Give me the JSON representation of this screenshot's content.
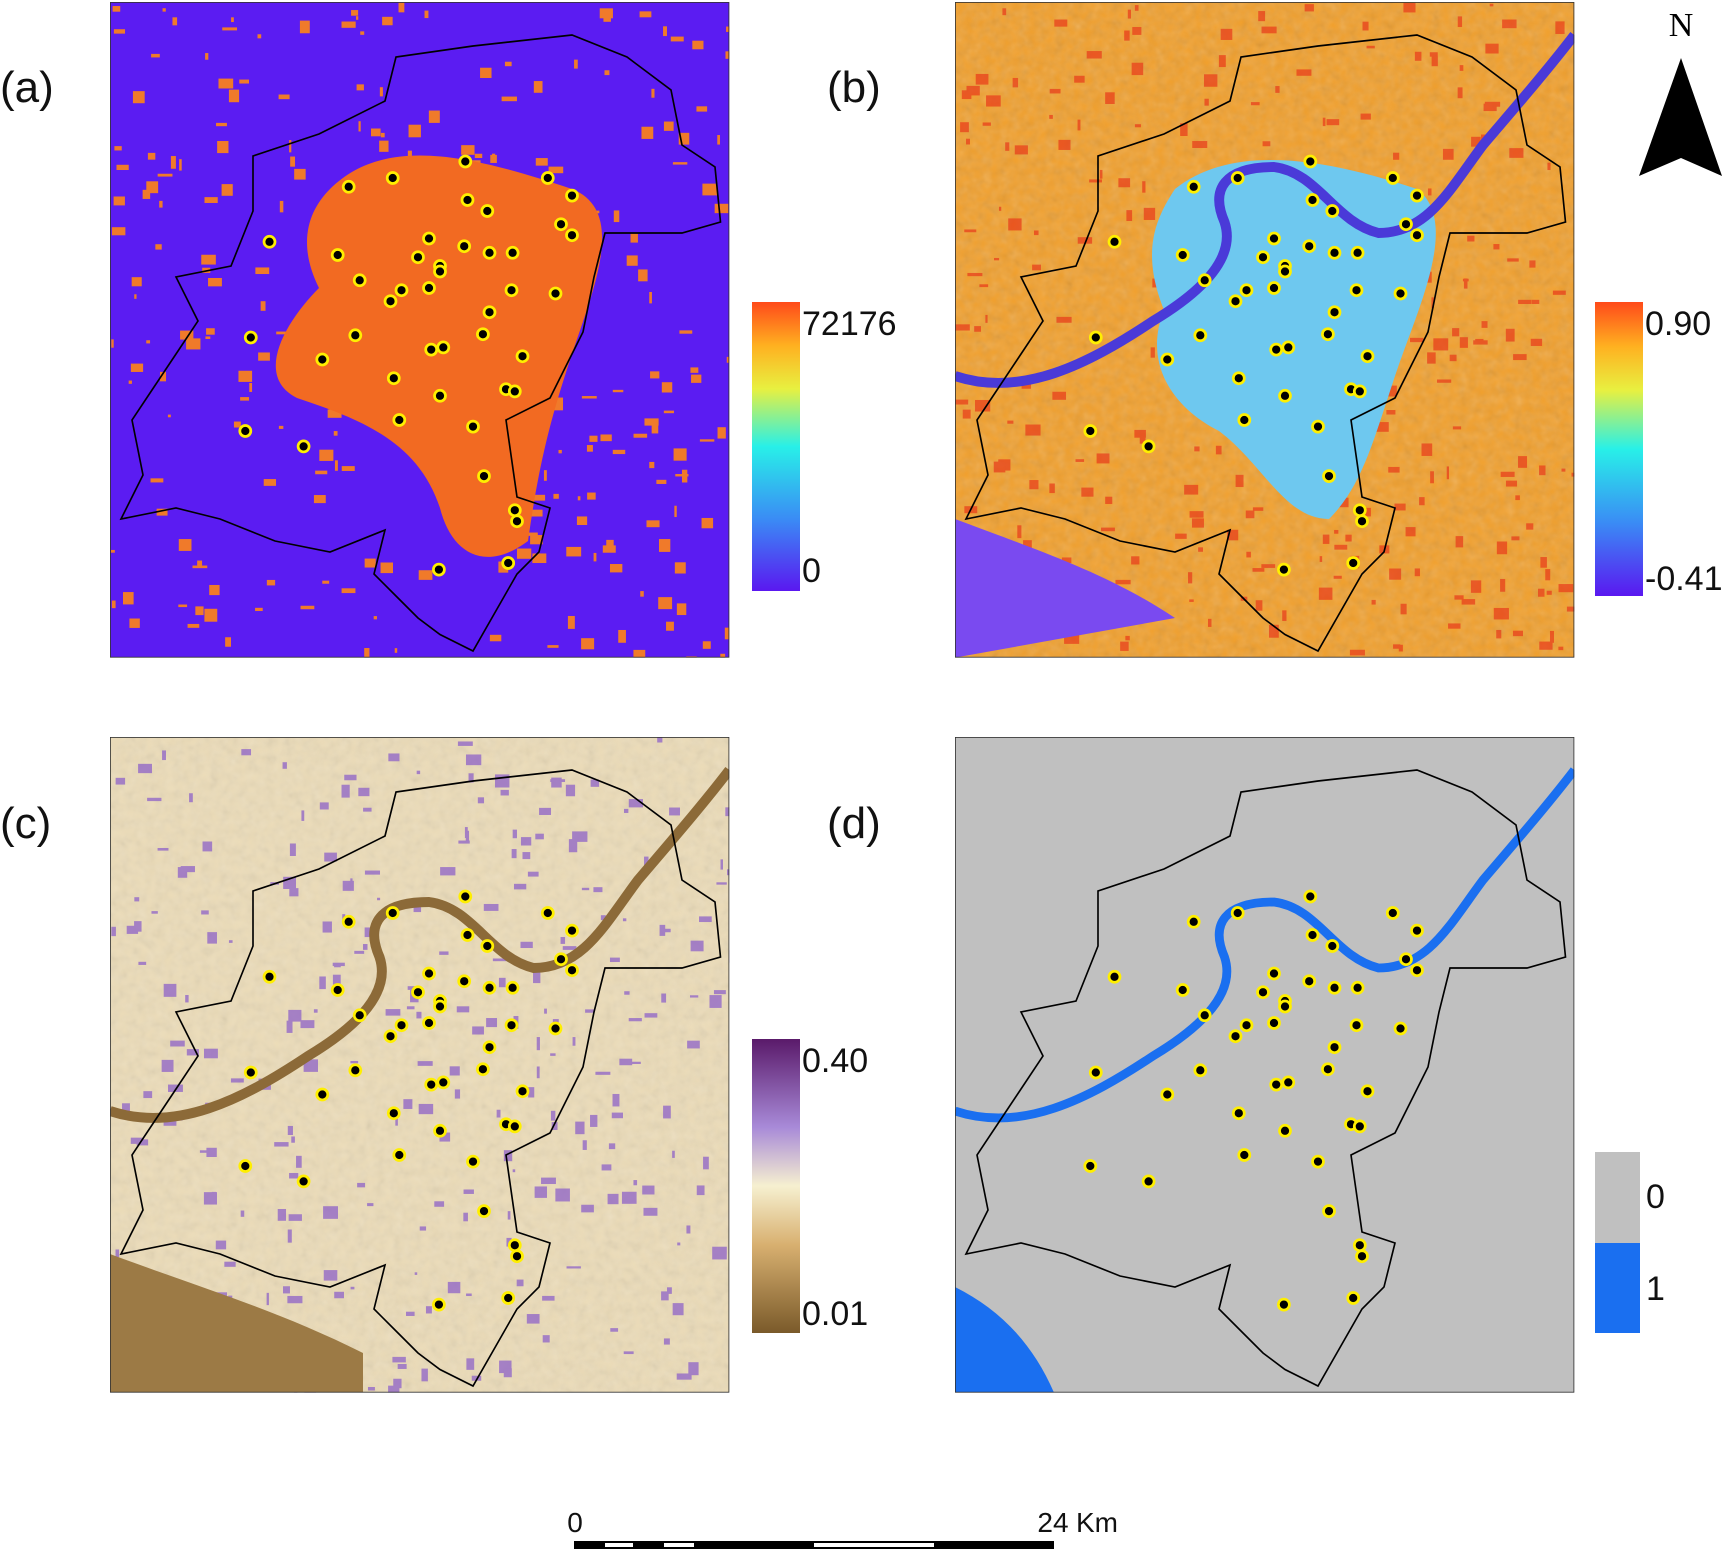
{
  "panels": [
    {
      "label": "(a)",
      "legend": {
        "max": "72176",
        "min": "0"
      }
    },
    {
      "label": "(b)",
      "legend": {
        "max": "0.90",
        "min": "-0.41"
      }
    },
    {
      "label": "(c)",
      "legend": {
        "max": "0.40",
        "min": "0.01"
      }
    },
    {
      "label": "(d)",
      "legend": {
        "max": "0",
        "min": "1"
      }
    }
  ],
  "north": "N",
  "scale_bar": {
    "start": "0",
    "end": "24",
    "unit": "Km"
  }
}
